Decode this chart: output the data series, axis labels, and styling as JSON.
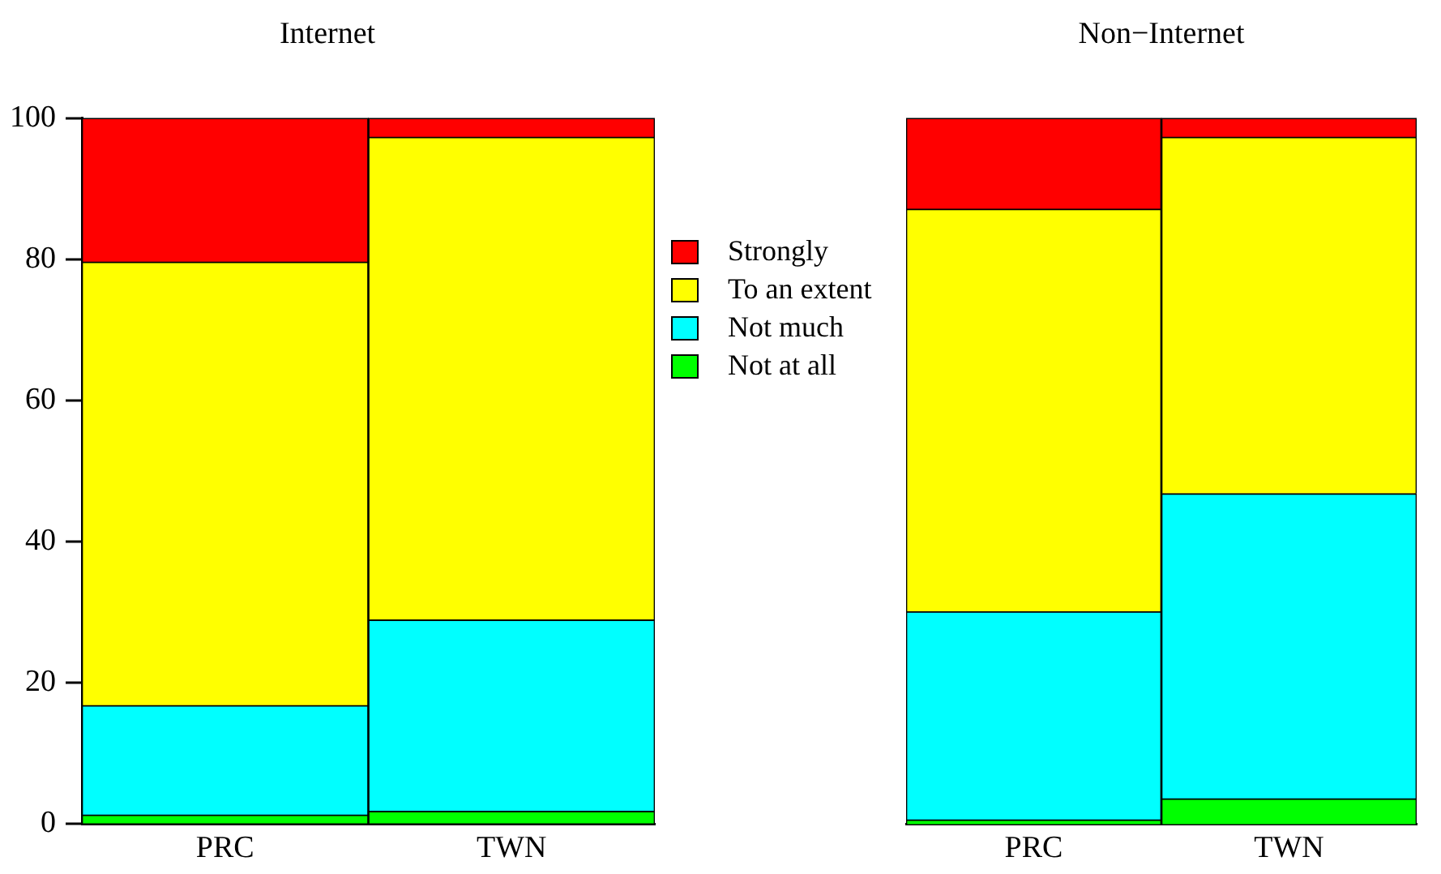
{
  "chart_data": [
    {
      "type": "bar",
      "title": "Internet",
      "categories": [
        "PRC",
        "TWN"
      ],
      "stacked": true,
      "ylim": [
        0,
        100
      ],
      "yticks": [
        0,
        20,
        40,
        60,
        80,
        100
      ],
      "grid": false,
      "legend": "right",
      "series": [
        {
          "name": "Not at all",
          "color": "#00ff00",
          "values": [
            1.3,
            1.8
          ]
        },
        {
          "name": "Not much",
          "color": "#00ffff",
          "values": [
            15.5,
            27.1
          ]
        },
        {
          "name": "To an extent",
          "color": "#ffff00",
          "values": [
            62.8,
            68.4
          ]
        },
        {
          "name": "Strongly",
          "color": "#ff0000",
          "values": [
            20.4,
            2.7
          ]
        }
      ]
    },
    {
      "type": "bar",
      "title": "Non−Internet",
      "categories": [
        "PRC",
        "TWN"
      ],
      "stacked": true,
      "ylim": [
        0,
        100
      ],
      "yticks": [
        0,
        20,
        40,
        60,
        80,
        100
      ],
      "grid": false,
      "legend": false,
      "tick_labels": "x",
      "series": [
        {
          "color": "#00ff00",
          "values": [
            0.6,
            3.6
          ]
        },
        {
          "color": "#00ffff",
          "values": [
            29.5,
            43.2
          ]
        },
        {
          "color": "#ffff00",
          "values": [
            57.0,
            50.5
          ]
        },
        {
          "color": "#ff0000",
          "values": [
            12.9,
            2.7
          ]
        }
      ]
    }
  ]
}
